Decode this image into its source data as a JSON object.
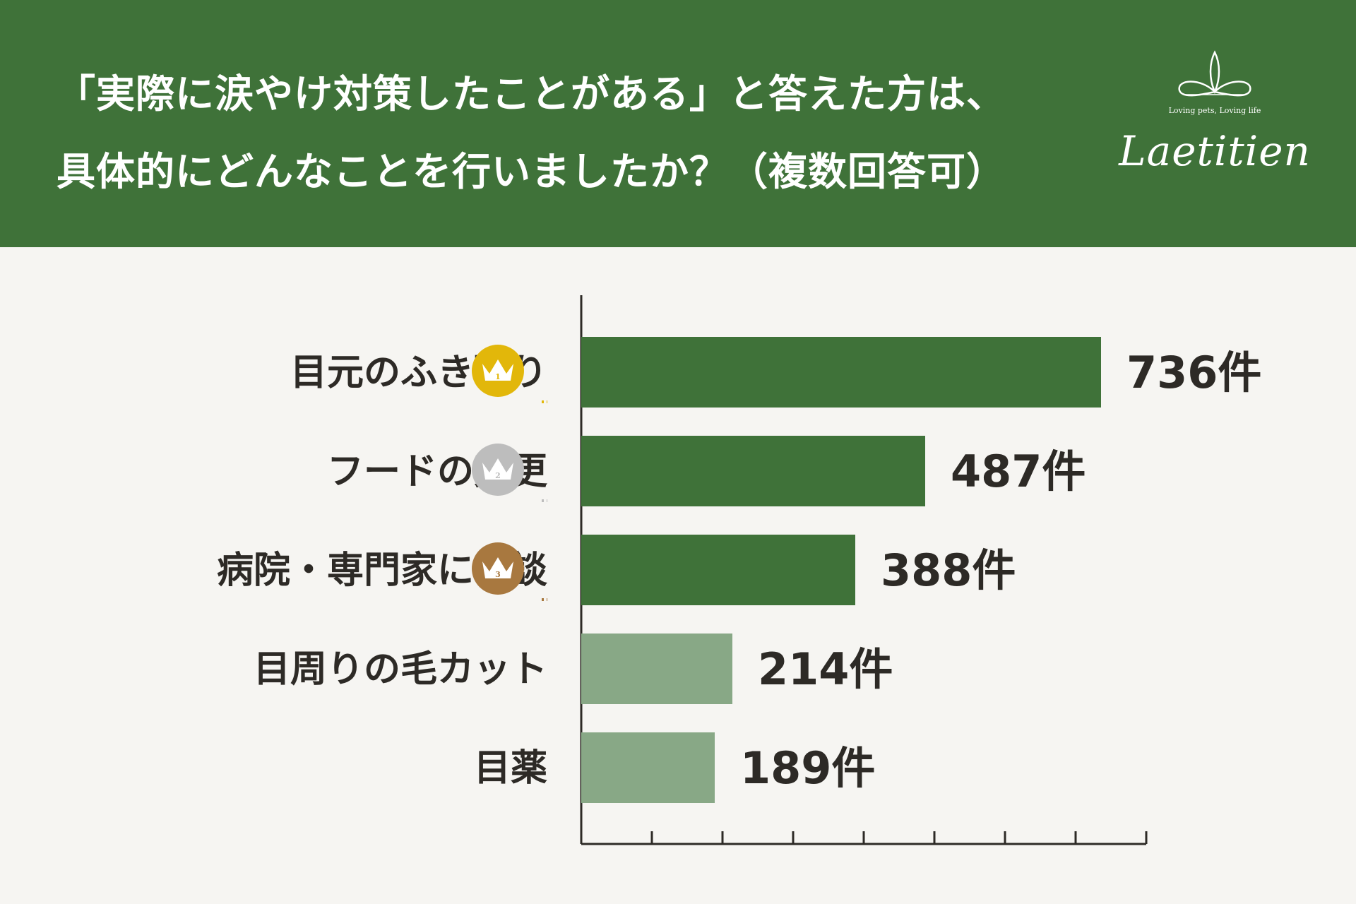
{
  "header": {
    "title_line1": "「実際に涙やけ対策したことがある」と答えた方は、",
    "title_line2": "具体的にどんなことを行いましたか？（複数回答可）",
    "background_color": "#3f7239"
  },
  "logo": {
    "tagline": "Loving pets, Loving life",
    "name": "Laetitien"
  },
  "chart_data": {
    "type": "bar",
    "orientation": "horizontal",
    "categories": [
      "目元のふき取り",
      "フードの変更",
      "病院・専門家に相談",
      "目周りの毛カット",
      "目薬"
    ],
    "values": [
      736,
      487,
      388,
      214,
      189
    ],
    "value_labels": [
      "736件",
      "487件",
      "388件",
      "214件",
      "189件"
    ],
    "ranks": [
      "1",
      "2",
      "3"
    ],
    "xlim": [
      0,
      800
    ],
    "grid": false,
    "colors": {
      "top3": "#3f7239",
      "others": "#88a886",
      "gold": "#e2b70a",
      "silver": "#bdbdbd",
      "bronze": "#a8783f",
      "text": "#2d2a26"
    }
  }
}
